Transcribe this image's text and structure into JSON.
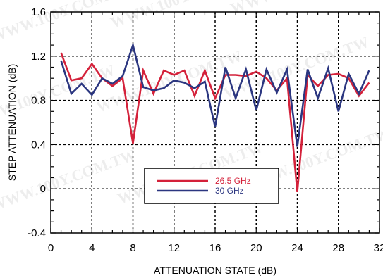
{
  "chart_data": {
    "type": "line",
    "title": "",
    "xlabel": "ATTENUATION STATE (dB)",
    "ylabel": "STEP ATTENUATION (dB)",
    "xlim": [
      0,
      32
    ],
    "ylim": [
      -0.4,
      1.6
    ],
    "xticks": [
      0,
      4,
      8,
      12,
      16,
      20,
      24,
      28,
      32
    ],
    "yticks": [
      -0.4,
      0,
      0.4,
      0.8,
      1.2,
      1.6
    ],
    "xtick_labels": [
      "0",
      "4",
      "8",
      "12",
      "16",
      "20",
      "24",
      "28",
      "32"
    ],
    "ytick_labels": [
      "-0.4",
      "0",
      "0.4",
      "0.8",
      "1.2",
      "1.6"
    ],
    "grid": true,
    "legend_position": "bottom-center",
    "x": [
      1,
      2,
      3,
      4,
      5,
      6,
      7,
      8,
      9,
      10,
      11,
      12,
      13,
      14,
      15,
      16,
      17,
      18,
      19,
      20,
      21,
      22,
      23,
      24,
      25,
      26,
      27,
      28,
      29,
      30,
      31
    ],
    "series": [
      {
        "name": "26.5 GHz",
        "color": "#d4213a",
        "values": [
          1.23,
          0.98,
          1.0,
          1.13,
          1.0,
          0.93,
          1.0,
          0.41,
          1.07,
          0.86,
          1.07,
          1.03,
          1.07,
          0.84,
          1.07,
          0.82,
          1.03,
          1.03,
          1.02,
          1.06,
          1.0,
          0.89,
          1.0,
          -0.03,
          1.03,
          0.93,
          1.03,
          1.04,
          1.0,
          0.84,
          0.96
        ]
      },
      {
        "name": "30 GHz",
        "color": "#2b3680",
        "values": [
          1.16,
          0.86,
          0.95,
          0.85,
          1.0,
          0.95,
          1.02,
          1.3,
          0.92,
          0.89,
          0.91,
          0.98,
          0.96,
          0.91,
          0.97,
          0.56,
          1.1,
          0.82,
          1.08,
          0.71,
          1.08,
          0.87,
          1.08,
          0.38,
          1.08,
          0.82,
          1.09,
          0.7,
          1.04,
          0.86,
          1.07
        ]
      }
    ]
  },
  "watermark": {
    "text": "WWW.100Y.COM.TW"
  }
}
